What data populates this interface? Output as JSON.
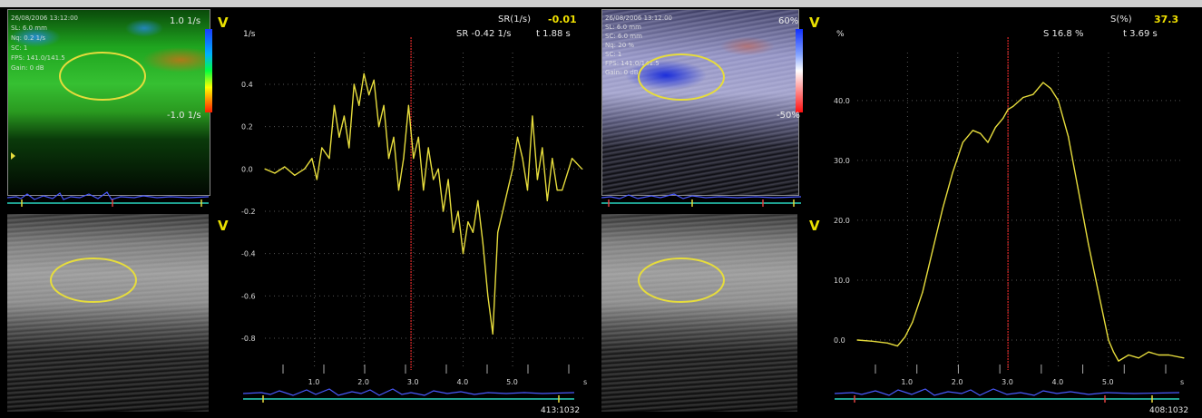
{
  "left_color_panel": {
    "overlay_lines": [
      "26/08/2006 13:12:00",
      "SL: 6.0 mm",
      "Nq: 0.2 1/s",
      "SC: 1",
      "FPS: 141.0/141.5",
      "Gain: 0 dB"
    ],
    "scale_top": "1.0 1/s",
    "scale_bottom": "-1.0 1/s",
    "scale_colors": [
      "#1a3cff",
      "#00b0ff",
      "#00ff40",
      "#ffff00",
      "#ff2000"
    ]
  },
  "right_color_panel": {
    "overlay_lines": [
      "26/08/2006 13:12:00",
      "SL: 6.0 mm",
      "SC: 6.0 mm",
      "Nq: 20 %",
      "SC: 1",
      "FPS: 141.0/141.5",
      "Gain: 0 dB"
    ],
    "scale_top": "60%",
    "scale_bottom": "-50%",
    "scale_colors": [
      "#1030ff",
      "#80a0ff",
      "#ffffff",
      "#ffa0a0",
      "#ff1010"
    ]
  },
  "v_marker": "V",
  "sr_chart": {
    "header_label": "SR(1/s)",
    "header_value": "-0.01",
    "readout_sr": "SR -0.42 1/s",
    "readout_t": "t 1.88 s",
    "unit_label": "1/s",
    "x_unit": "s",
    "frame_counter": "413:1032"
  },
  "s_chart": {
    "header_label": "S(%)",
    "header_value": "37.3",
    "readout_s": "S 16.8 %",
    "readout_t": "t 3.69 s",
    "unit_label": "%",
    "x_unit": "s",
    "frame_counter": "408:1032"
  },
  "chart_data": [
    {
      "type": "line",
      "name": "strain-rate",
      "ylabel": "1/s",
      "xlabel": "s",
      "xlim": [
        0,
        6.5
      ],
      "ylim": [
        -0.95,
        0.55
      ],
      "yticks": [
        0.4,
        0.2,
        0.0,
        -0.2,
        -0.4,
        -0.6,
        -0.8
      ],
      "ytick_labels": [
        "0.4",
        "0.2",
        "0.0",
        "-0.2",
        "-0.4",
        "-0.6",
        "-0.8"
      ],
      "xticks": [
        1.0,
        2.0,
        3.0,
        4.0,
        5.0
      ],
      "xtick_labels": [
        "1.0",
        "2.0",
        "3.0",
        "4.0",
        "5.0"
      ],
      "cursor_x": 2.95,
      "color": "#e6dc3c",
      "x": [
        0.0,
        0.2,
        0.4,
        0.6,
        0.8,
        0.95,
        1.05,
        1.15,
        1.3,
        1.4,
        1.5,
        1.6,
        1.7,
        1.8,
        1.9,
        2.0,
        2.1,
        2.2,
        2.3,
        2.4,
        2.5,
        2.6,
        2.7,
        2.8,
        2.9,
        3.0,
        3.1,
        3.2,
        3.3,
        3.4,
        3.5,
        3.6,
        3.7,
        3.8,
        3.9,
        4.0,
        4.1,
        4.2,
        4.3,
        4.4,
        4.5,
        4.6,
        4.7,
        4.8,
        4.9,
        5.0,
        5.1,
        5.2,
        5.3,
        5.4,
        5.5,
        5.6,
        5.7,
        5.8,
        5.9,
        6.0,
        6.2,
        6.4
      ],
      "y": [
        0.0,
        -0.02,
        0.01,
        -0.03,
        0.0,
        0.05,
        -0.05,
        0.1,
        0.05,
        0.3,
        0.15,
        0.25,
        0.1,
        0.4,
        0.3,
        0.45,
        0.35,
        0.42,
        0.2,
        0.3,
        0.05,
        0.15,
        -0.1,
        0.05,
        0.3,
        0.05,
        0.15,
        -0.1,
        0.1,
        -0.05,
        0.0,
        -0.2,
        -0.05,
        -0.3,
        -0.2,
        -0.4,
        -0.25,
        -0.3,
        -0.15,
        -0.35,
        -0.6,
        -0.78,
        -0.3,
        -0.2,
        -0.1,
        0.0,
        0.15,
        0.05,
        -0.1,
        0.25,
        -0.05,
        0.1,
        -0.15,
        0.05,
        -0.1,
        -0.1,
        0.05,
        0.0
      ]
    },
    {
      "type": "line",
      "name": "strain",
      "ylabel": "%",
      "xlabel": "s",
      "xlim": [
        0,
        6.5
      ],
      "ylim": [
        -5,
        48
      ],
      "yticks": [
        40.0,
        30.0,
        20.0,
        10.0,
        0.0
      ],
      "ytick_labels": [
        "40.0",
        "30.0",
        "20.0",
        "10.0",
        "0.0"
      ],
      "xticks": [
        1.0,
        2.0,
        3.0,
        4.0,
        5.0
      ],
      "xtick_labels": [
        "1.0",
        "2.0",
        "3.0",
        "4.0",
        "5.0"
      ],
      "cursor_x": 3.0,
      "color": "#e6dc3c",
      "x": [
        0.0,
        0.3,
        0.6,
        0.8,
        0.95,
        1.1,
        1.3,
        1.5,
        1.7,
        1.9,
        2.1,
        2.3,
        2.45,
        2.6,
        2.75,
        2.9,
        3.0,
        3.1,
        3.3,
        3.5,
        3.7,
        3.85,
        4.0,
        4.2,
        4.4,
        4.6,
        4.8,
        5.0,
        5.1,
        5.2,
        5.4,
        5.6,
        5.8,
        6.0,
        6.2,
        6.5
      ],
      "y": [
        0.0,
        -0.2,
        -0.5,
        -1.0,
        0.5,
        3.0,
        8.0,
        15.0,
        22.0,
        28.0,
        33.0,
        35.0,
        34.5,
        33.0,
        35.5,
        37.0,
        38.5,
        39.0,
        40.5,
        41.0,
        43.0,
        42.0,
        40.0,
        34.0,
        25.0,
        16.0,
        8.0,
        0.0,
        -2.0,
        -3.5,
        -2.5,
        -3.0,
        -2.0,
        -2.5,
        -2.5,
        -3.0
      ]
    }
  ]
}
